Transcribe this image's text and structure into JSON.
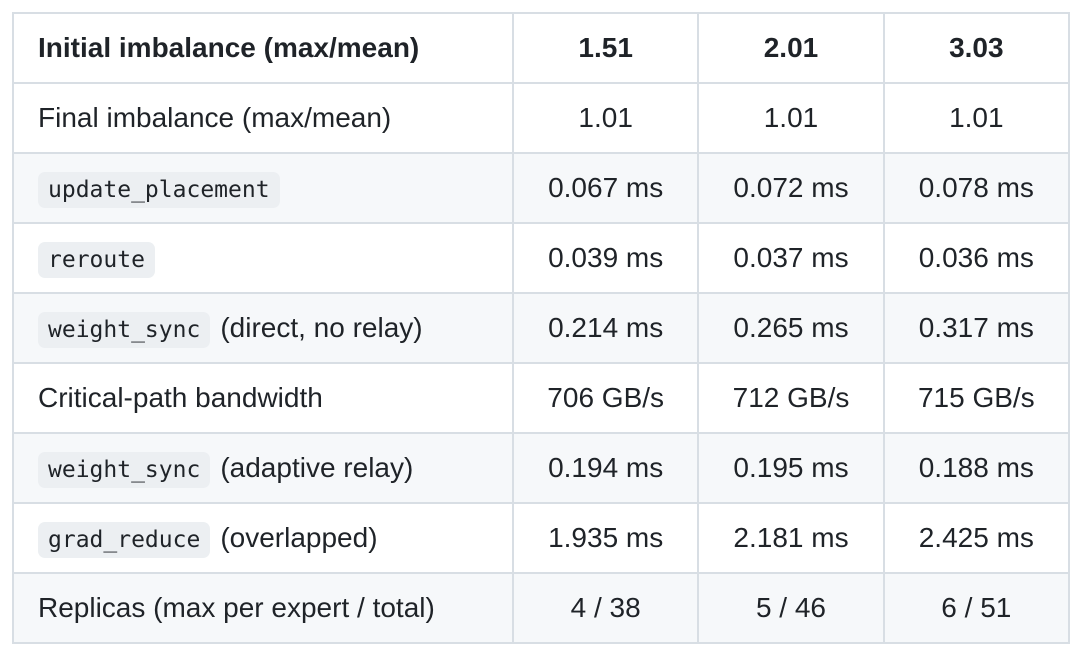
{
  "table": {
    "header": [
      "Initial imbalance (max/mean)",
      "1.51",
      "2.01",
      "3.03"
    ],
    "rows": [
      [
        "Final imbalance (max/mean)",
        "1.01",
        "1.01",
        "1.01"
      ],
      [
        {
          "code": "update_placement"
        },
        "0.067 ms",
        "0.072 ms",
        "0.078 ms"
      ],
      [
        {
          "code": "reroute"
        },
        "0.039 ms",
        "0.037 ms",
        "0.036 ms"
      ],
      [
        {
          "code": "weight_sync",
          "note": "(direct, no relay)"
        },
        "0.214 ms",
        "0.265 ms",
        "0.317 ms"
      ],
      [
        "Critical-path bandwidth",
        "706 GB/s",
        "712 GB/s",
        "715 GB/s"
      ],
      [
        {
          "code": "weight_sync",
          "note": "(adaptive relay)"
        },
        "0.194 ms",
        "0.195 ms",
        "0.188 ms"
      ],
      [
        {
          "code": "grad_reduce",
          "note": "(overlapped)"
        },
        "1.935 ms",
        "2.181 ms",
        "2.425 ms"
      ],
      [
        "Replicas (max per expert / total)",
        "4 / 38",
        "5 / 46",
        "6 / 51"
      ]
    ]
  }
}
